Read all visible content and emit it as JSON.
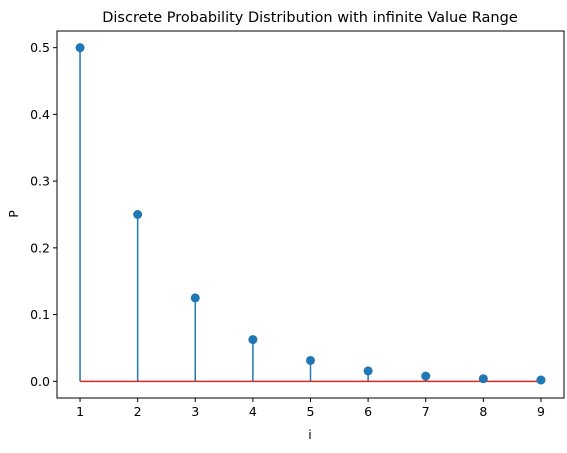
{
  "chart_data": {
    "type": "stem",
    "title": "Discrete Probability Distribution with infinite Value Range",
    "xlabel": "i",
    "ylabel": "P",
    "x": [
      1,
      2,
      3,
      4,
      5,
      6,
      7,
      8,
      9
    ],
    "y": [
      0.5,
      0.25,
      0.125,
      0.0625,
      0.03125,
      0.015625,
      0.0078125,
      0.00390625,
      0.001953125
    ],
    "xlim": [
      0.6,
      9.4
    ],
    "ylim": [
      -0.025,
      0.525
    ],
    "xticks": [
      1,
      2,
      3,
      4,
      5,
      6,
      7,
      8,
      9
    ],
    "yticks": [
      0.0,
      0.1,
      0.2,
      0.3,
      0.4,
      0.5
    ],
    "ytick_labels": [
      "0.0",
      "0.1",
      "0.2",
      "0.3",
      "0.4",
      "0.5"
    ],
    "xtick_labels": [
      "1",
      "2",
      "3",
      "4",
      "5",
      "6",
      "7",
      "8",
      "9"
    ],
    "grid": false,
    "colors": {
      "stem": "#1f77b4",
      "marker": "#1f77b4",
      "baseline": "#d62728",
      "axes": "#000000"
    }
  }
}
